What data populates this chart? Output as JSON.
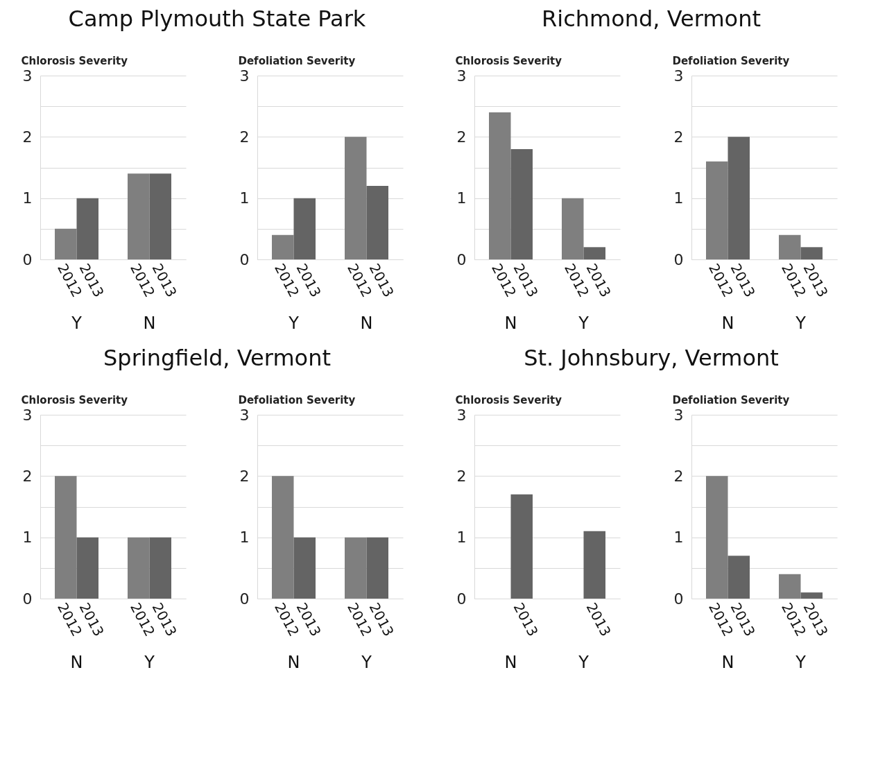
{
  "chart_data": [
    {
      "type": "bar",
      "title": "Camp Plymouth State Park",
      "ylabel": "Chlorosis Severity",
      "categories": [
        "Y",
        "N"
      ],
      "series": [
        {
          "name": "2012",
          "color": "#7f7f7f",
          "values": [
            0.5,
            1.4
          ]
        },
        {
          "name": "2013",
          "color": "#646464",
          "values": [
            1.0,
            1.4
          ]
        }
      ],
      "ylim": [
        0,
        3
      ],
      "yticks": [
        0,
        {
          "value": 0.5,
          "label": null
        },
        1,
        {
          "value": 1.5,
          "label": null
        },
        2,
        {
          "value": 2.5,
          "label": null
        },
        3
      ],
      "grid": "y"
    },
    {
      "type": "bar",
      "ylabel": "Defoliation Severity",
      "categories": [
        "Y",
        "N"
      ],
      "series": [
        {
          "name": "2012",
          "color": "#7f7f7f",
          "values": [
            0.4,
            2.0
          ]
        },
        {
          "name": "2013",
          "color": "#646464",
          "values": [
            1.0,
            1.2
          ]
        }
      ],
      "ylim": [
        0,
        3
      ],
      "yticks": [
        0,
        {
          "value": 0.5,
          "label": null
        },
        1,
        {
          "value": 1.5,
          "label": null
        },
        2,
        {
          "value": 2.5,
          "label": null
        },
        3
      ],
      "grid": "y"
    },
    {
      "type": "bar",
      "title": "Richmond, Vermont",
      "ylabel": "Chlorosis Severity",
      "categories": [
        "N",
        "Y"
      ],
      "series": [
        {
          "name": "2012",
          "color": "#7f7f7f",
          "values": [
            2.4,
            1.0
          ]
        },
        {
          "name": "2013",
          "color": "#646464",
          "values": [
            1.8,
            0.2
          ]
        }
      ],
      "ylim": [
        0,
        3
      ],
      "yticks": [
        0,
        {
          "value": 0.5,
          "label": null
        },
        1,
        {
          "value": 1.5,
          "label": null
        },
        2,
        {
          "value": 2.5,
          "label": null
        },
        3
      ],
      "grid": "y"
    },
    {
      "type": "bar",
      "ylabel": "Defoliation Severity",
      "categories": [
        "N",
        "Y"
      ],
      "series": [
        {
          "name": "2012",
          "color": "#7f7f7f",
          "values": [
            1.6,
            0.4
          ]
        },
        {
          "name": "2013",
          "color": "#646464",
          "values": [
            2.0,
            0.2
          ]
        }
      ],
      "ylim": [
        0,
        3
      ],
      "yticks": [
        0,
        {
          "value": 0.5,
          "label": null
        },
        1,
        {
          "value": 1.5,
          "label": null
        },
        2,
        {
          "value": 2.5,
          "label": null
        },
        3
      ],
      "grid": "y"
    },
    {
      "type": "bar",
      "title": "Springfield, Vermont",
      "ylabel": "Chlorosis Severity",
      "categories": [
        "N",
        "Y"
      ],
      "series": [
        {
          "name": "2012",
          "color": "#7f7f7f",
          "values": [
            2.0,
            1.0
          ]
        },
        {
          "name": "2013",
          "color": "#646464",
          "values": [
            1.0,
            1.0
          ]
        }
      ],
      "ylim": [
        0,
        3
      ],
      "yticks": [
        0,
        {
          "value": 0.5,
          "label": null
        },
        1,
        {
          "value": 1.5,
          "label": null
        },
        2,
        {
          "value": 2.5,
          "label": null
        },
        3
      ],
      "grid": "y"
    },
    {
      "type": "bar",
      "ylabel": "Defoliation Severity",
      "categories": [
        "N",
        "Y"
      ],
      "series": [
        {
          "name": "2012",
          "color": "#7f7f7f",
          "values": [
            2.0,
            1.0
          ]
        },
        {
          "name": "2013",
          "color": "#646464",
          "values": [
            1.0,
            1.0
          ]
        }
      ],
      "ylim": [
        0,
        3
      ],
      "yticks": [
        0,
        {
          "value": 0.5,
          "label": null
        },
        1,
        {
          "value": 1.5,
          "label": null
        },
        2,
        {
          "value": 2.5,
          "label": null
        },
        3
      ],
      "grid": "y"
    },
    {
      "type": "bar",
      "title": "St. Johnsbury, Vermont",
      "ylabel": "Chlorosis Severity",
      "categories": [
        "N",
        "Y"
      ],
      "series": [
        {
          "color": "#7f7f7f",
          "values": [
            null,
            null
          ]
        },
        {
          "name": "2013",
          "color": "#646464",
          "values": [
            1.7,
            1.1
          ]
        }
      ],
      "ylim": [
        0,
        3
      ],
      "yticks": [
        0,
        {
          "value": 0.5,
          "label": null
        },
        1,
        {
          "value": 1.5,
          "label": null
        },
        2,
        {
          "value": 2.5,
          "label": null
        },
        3
      ],
      "grid": "y"
    },
    {
      "type": "bar",
      "ylabel": "Defoliation Severity",
      "categories": [
        "N",
        "Y"
      ],
      "series": [
        {
          "name": "2012",
          "color": "#7f7f7f",
          "values": [
            2.0,
            0.4
          ]
        },
        {
          "name": "2013",
          "color": "#646464",
          "values": [
            0.7,
            0.1
          ]
        }
      ],
      "ylim": [
        0,
        3
      ],
      "yticks": [
        0,
        {
          "value": 0.5,
          "label": null
        },
        1,
        {
          "value": 1.5,
          "label": null
        },
        2,
        {
          "value": 2.5,
          "label": null
        },
        3
      ],
      "grid": "y"
    }
  ]
}
